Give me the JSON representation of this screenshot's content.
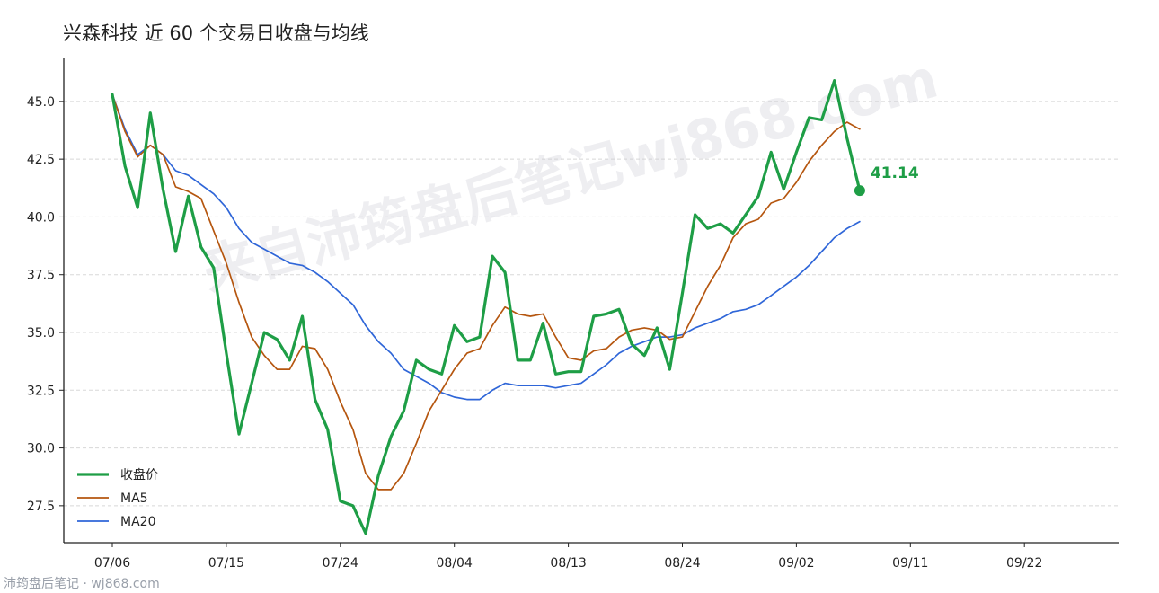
{
  "chart_data": {
    "type": "line",
    "title": "兴森科技 近 60 个交易日收盘与均线",
    "xlabel": "",
    "ylabel": "",
    "ylim": [
      25.9,
      46.9
    ],
    "yticks": [
      27.5,
      30.0,
      32.5,
      35.0,
      37.5,
      40.0,
      42.5,
      45.0
    ],
    "xtick_labels": [
      "07/06",
      "07/15",
      "07/24",
      "08/04",
      "08/13",
      "08/24",
      "09/02",
      "09/11",
      "09/22"
    ],
    "grid": true,
    "legend_position": "lower-left",
    "last_value_label": "41.14",
    "series": [
      {
        "name": "收盘价",
        "color": "#1e9e46",
        "values": [
          45.3,
          42.2,
          40.4,
          44.5,
          41.2,
          38.5,
          40.9,
          38.7,
          37.8,
          34.1,
          30.6,
          32.8,
          35.0,
          34.7,
          33.8,
          35.7,
          32.1,
          30.8,
          27.7,
          27.5,
          26.3,
          28.8,
          30.5,
          31.6,
          33.8,
          33.4,
          33.2,
          35.3,
          34.6,
          34.8,
          38.3,
          37.6,
          33.8,
          33.8,
          35.4,
          33.2,
          33.3,
          33.3,
          35.7,
          35.8,
          36.0,
          34.5,
          34.0,
          35.2,
          33.4,
          36.7,
          40.1,
          39.5,
          39.7,
          39.3,
          40.1,
          40.9,
          42.8,
          41.2,
          42.8,
          44.3,
          44.2,
          45.9,
          43.4,
          41.14
        ]
      },
      {
        "name": "MA5",
        "color": "#b5560f",
        "values": [
          45.3,
          43.7,
          42.6,
          43.1,
          42.7,
          41.3,
          41.1,
          40.8,
          39.4,
          38.0,
          36.3,
          34.8,
          34.0,
          33.4,
          33.4,
          34.4,
          34.3,
          33.4,
          32.0,
          30.8,
          28.9,
          28.2,
          28.2,
          28.9,
          30.2,
          31.6,
          32.5,
          33.4,
          34.1,
          34.3,
          35.3,
          36.1,
          35.8,
          35.7,
          35.8,
          34.8,
          33.9,
          33.8,
          34.2,
          34.3,
          34.8,
          35.1,
          35.2,
          35.1,
          34.7,
          34.8,
          35.9,
          37.0,
          37.9,
          39.1,
          39.7,
          39.9,
          40.6,
          40.8,
          41.5,
          42.4,
          43.1,
          43.7,
          44.1,
          43.8
        ]
      },
      {
        "name": "MA20",
        "color": "#2f66d8",
        "values": [
          45.3,
          43.8,
          42.7,
          43.1,
          42.7,
          42.0,
          41.8,
          41.4,
          41.0,
          40.4,
          39.5,
          38.9,
          38.6,
          38.3,
          38.0,
          37.9,
          37.6,
          37.2,
          36.7,
          36.2,
          35.3,
          34.6,
          34.1,
          33.4,
          33.1,
          32.8,
          32.4,
          32.2,
          32.1,
          32.1,
          32.5,
          32.8,
          32.7,
          32.7,
          32.7,
          32.6,
          32.7,
          32.8,
          33.2,
          33.6,
          34.1,
          34.4,
          34.6,
          34.8,
          34.8,
          34.9,
          35.2,
          35.4,
          35.6,
          35.9,
          36.0,
          36.2,
          36.6,
          37.0,
          37.4,
          37.9,
          38.5,
          39.1,
          39.5,
          39.8
        ]
      }
    ]
  },
  "watermark_text": "来自沛筠盘后笔记wj868.com",
  "footer_text": "沛筠盘后笔记 · wj868.com"
}
